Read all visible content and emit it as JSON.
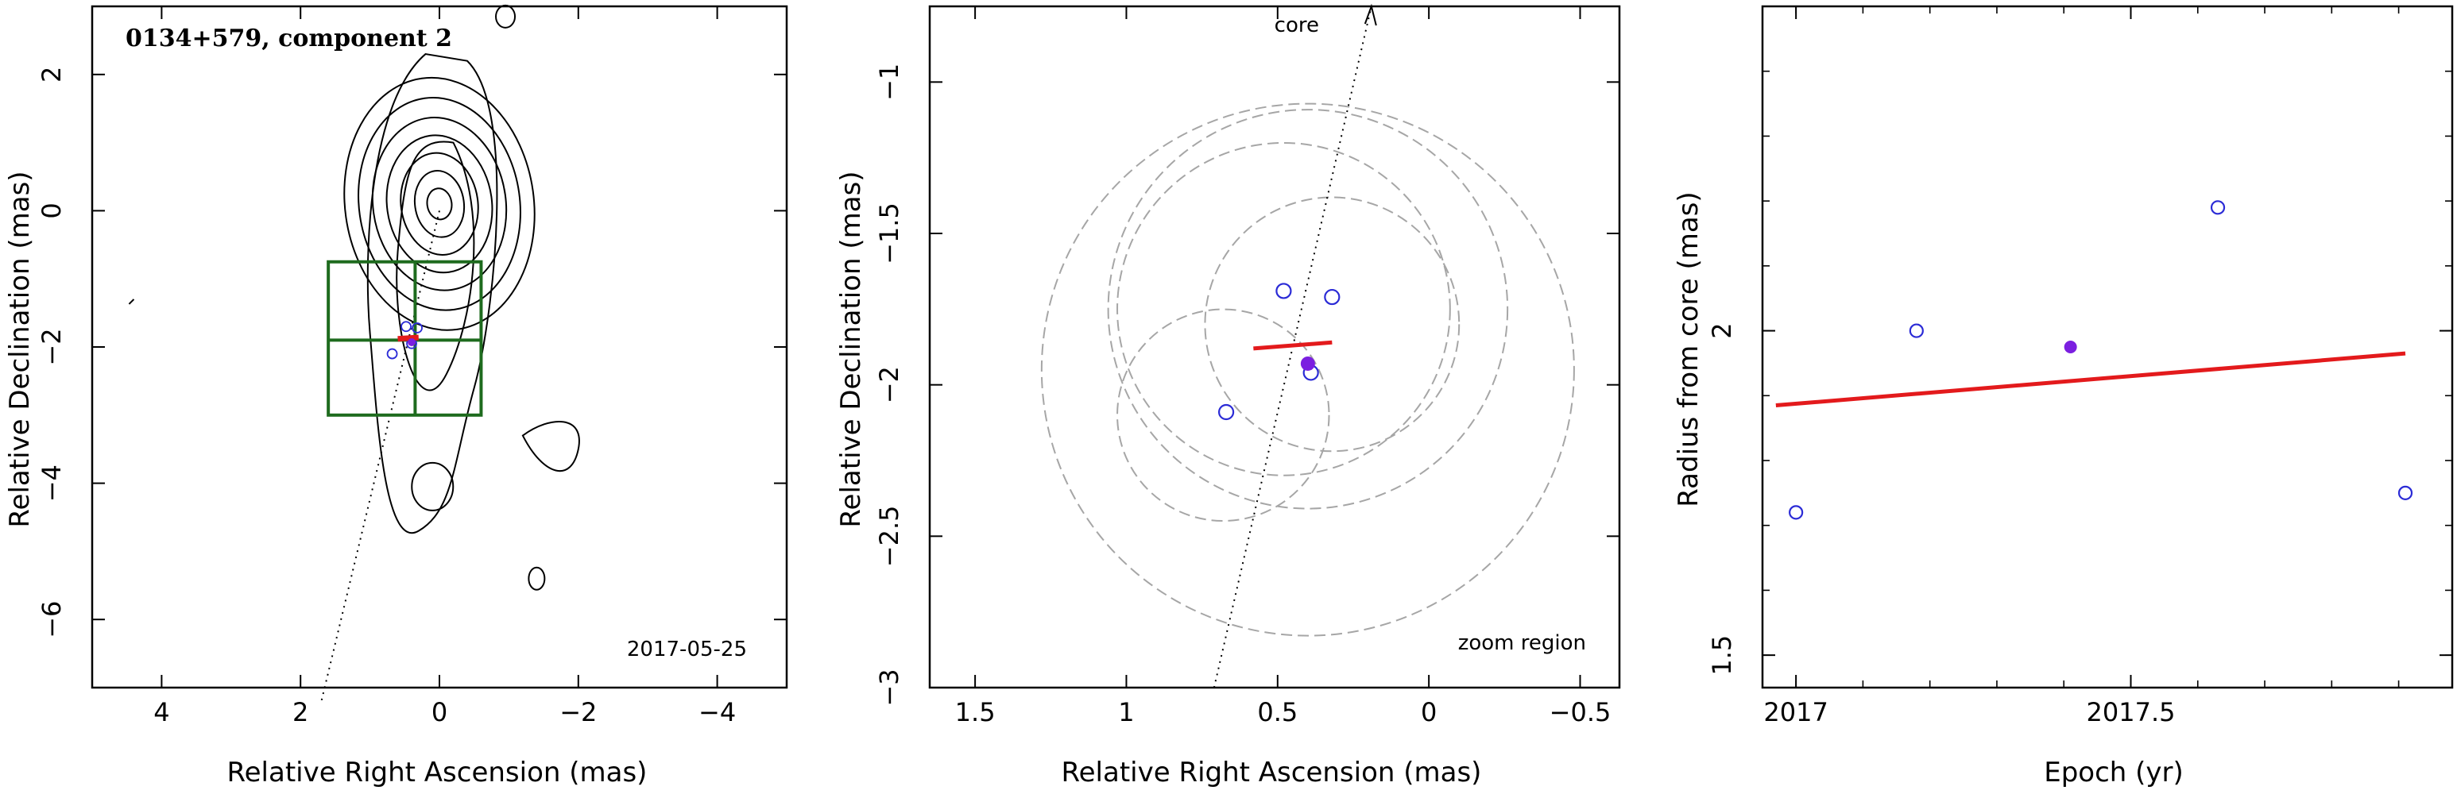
{
  "colors": {
    "contour": "#000000",
    "box": "#1e6b1e",
    "fit_line": "#e31a1c",
    "observed_point": "#2b2bd6",
    "highlight_point": "#7b1fe0",
    "error_circle": "#a6a6a6"
  },
  "chart_data": [
    {
      "type": "contour",
      "title": "0134+579, component 2",
      "date_label": "2017-05-25",
      "xlabel": "Relative Right Ascension (mas)",
      "ylabel": "Relative Declination (mas)",
      "xlim": [
        5,
        -5
      ],
      "ylim": [
        -7,
        3
      ],
      "x_ticks": [
        {
          "v": 4,
          "label": "4"
        },
        {
          "v": 2,
          "label": "2"
        },
        {
          "v": 0,
          "label": "0"
        },
        {
          "v": -2,
          "label": "−2"
        },
        {
          "v": -4,
          "label": "−4"
        }
      ],
      "y_ticks": [
        {
          "v": 2,
          "label": "2"
        },
        {
          "v": 0,
          "label": "0"
        },
        {
          "v": -2,
          "label": "−2"
        },
        {
          "v": -4,
          "label": "−4"
        },
        {
          "v": -6,
          "label": "−6"
        }
      ],
      "core_direction_line": [
        [
          0,
          0
        ],
        [
          1.7,
          -7.2
        ]
      ],
      "zoom_box": {
        "x": [
          1.6,
          -0.6
        ],
        "y": [
          -0.75,
          -3.0
        ],
        "split_x": 0.35,
        "split_y": -1.9
      },
      "component_points": [
        [
          0.48,
          -1.7
        ],
        [
          0.32,
          -1.72
        ],
        [
          0.4,
          -1.95
        ],
        [
          0.68,
          -2.1
        ]
      ],
      "fit_segment": [
        [
          0.6,
          -1.88
        ],
        [
          0.3,
          -1.86
        ]
      ],
      "highlight_point": [
        0.4,
        -1.93
      ]
    },
    {
      "type": "scatter",
      "annotation_core": "core",
      "annotation_zoom": "zoom region",
      "xlabel": "Relative Right Ascension (mas)",
      "ylabel": "Relative Declination (mas)",
      "xlim": [
        1.65,
        -0.63
      ],
      "ylim": [
        -3.0,
        -0.75
      ],
      "x_ticks": [
        {
          "v": 1.5,
          "label": "1.5"
        },
        {
          "v": 1,
          "label": "1"
        },
        {
          "v": 0.5,
          "label": "0.5"
        },
        {
          "v": 0,
          "label": "0"
        },
        {
          "v": -0.5,
          "label": "−0.5"
        }
      ],
      "y_ticks": [
        {
          "v": -1,
          "label": "−1"
        },
        {
          "v": -1.5,
          "label": "−1.5"
        },
        {
          "v": -2,
          "label": "−2"
        },
        {
          "v": -2.5,
          "label": "−2.5"
        },
        {
          "v": -3,
          "label": "−3"
        }
      ],
      "core_direction_line": [
        [
          0.71,
          -3.0
        ],
        [
          0.19,
          -0.75
        ]
      ],
      "error_circles": [
        {
          "cx": 0.4,
          "cy": -1.95,
          "r": 0.88
        },
        {
          "cx": 0.4,
          "cy": -1.75,
          "r": 0.66
        },
        {
          "cx": 0.48,
          "cy": -1.75,
          "r": 0.55
        },
        {
          "cx": 0.32,
          "cy": -1.8,
          "r": 0.42
        },
        {
          "cx": 0.68,
          "cy": -2.1,
          "r": 0.35
        }
      ],
      "points": [
        {
          "x": 0.48,
          "y": -1.69
        },
        {
          "x": 0.32,
          "y": -1.71
        },
        {
          "x": 0.39,
          "y": -1.96
        },
        {
          "x": 0.67,
          "y": -2.09
        }
      ],
      "highlight_point": {
        "x": 0.4,
        "y": -1.93
      },
      "fit_segment": [
        [
          0.58,
          -1.88
        ],
        [
          0.32,
          -1.86
        ]
      ]
    },
    {
      "type": "scatter",
      "xlabel": "Epoch (yr)",
      "ylabel": "Radius from core (mas)",
      "xlim": [
        2016.95,
        2017.98
      ],
      "ylim": [
        1.45,
        2.5
      ],
      "x_ticks": [
        {
          "v": 2017,
          "label": "2017"
        },
        {
          "v": 2017.5,
          "label": "2017.5"
        }
      ],
      "y_ticks": [
        {
          "v": 1.5,
          "label": "1.5"
        },
        {
          "v": 2,
          "label": "2"
        }
      ],
      "points": [
        {
          "x": 2017.0,
          "y": 1.72
        },
        {
          "x": 2017.18,
          "y": 2.0
        },
        {
          "x": 2017.63,
          "y": 2.19
        },
        {
          "x": 2017.91,
          "y": 1.75
        }
      ],
      "highlight_point": {
        "x": 2017.41,
        "y": 1.975
      },
      "fit_line": {
        "x": [
          2016.97,
          2017.91
        ],
        "y": [
          1.885,
          1.965
        ]
      }
    }
  ]
}
